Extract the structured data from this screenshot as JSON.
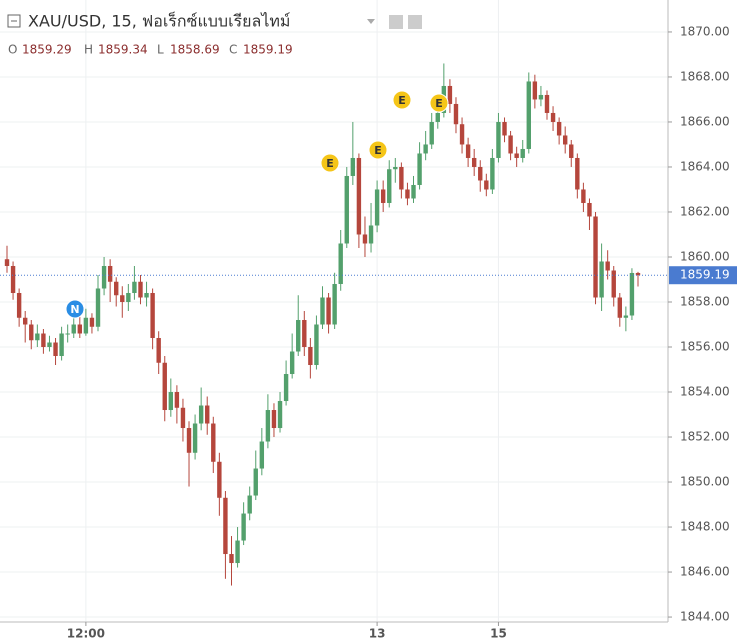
{
  "chart_data": {
    "type": "candlestick",
    "title": "XAU/USD, 15, ฟอเร็กซ์แบบเรียลไทม์",
    "ohlc_labels": [
      "O",
      "H",
      "L",
      "C"
    ],
    "up_color": "#53a06c",
    "down_color": "#b5463c",
    "price_line_color": "#4a7bd0",
    "grid": true,
    "events": [
      "N",
      "E",
      "E",
      "E",
      "E"
    ],
    "categories": [
      null,
      null,
      null,
      null,
      null,
      null,
      null,
      null,
      null,
      null,
      null,
      null,
      null,
      "12:00",
      null,
      null,
      null,
      null,
      null,
      null,
      null,
      null,
      null,
      null,
      null,
      null,
      null,
      null,
      null,
      null,
      null,
      null,
      null,
      null,
      null,
      null,
      null,
      null,
      null,
      null,
      null,
      null,
      null,
      null,
      null,
      null,
      null,
      null,
      null,
      null,
      null,
      null,
      null,
      null,
      null,
      null,
      null,
      null,
      null,
      null,
      null,
      "13",
      null,
      null,
      null,
      null,
      null,
      null,
      null,
      null,
      null,
      null,
      null,
      null,
      null,
      null,
      null,
      null,
      null,
      null,
      null,
      "15",
      null,
      null,
      null,
      null,
      null,
      null,
      null,
      null,
      null,
      null,
      null,
      null,
      null,
      null,
      null,
      null,
      null,
      null,
      null,
      null,
      null,
      null,
      null
    ],
    "open": [
      1859.9,
      1859.6,
      1858.4,
      1857.3,
      1857.0,
      1856.3,
      1856.6,
      1856.0,
      1856.2,
      1855.6,
      1856.6,
      1856.6,
      1857.0,
      1856.6,
      1857.3,
      1856.9,
      1858.6,
      1859.6,
      1858.9,
      1858.3,
      1858.0,
      1858.4,
      1858.9,
      1858.2,
      1858.4,
      1856.4,
      1855.3,
      1853.2,
      1854.0,
      1853.3,
      1852.4,
      1851.3,
      1852.6,
      1853.4,
      1852.6,
      1850.9,
      1849.3,
      1846.8,
      1846.4,
      1847.4,
      1848.6,
      1849.4,
      1850.6,
      1851.8,
      1853.2,
      1852.4,
      1853.6,
      1854.8,
      1855.8,
      1857.2,
      1856.0,
      1855.2,
      1857.0,
      1858.2,
      1857.0,
      1858.8,
      1860.6,
      1863.6,
      1864.4,
      1861.0,
      1860.6,
      1861.4,
      1863.0,
      1862.4,
      1863.9,
      1864.0,
      1863.0,
      1862.6,
      1863.2,
      1864.6,
      1865.0,
      1866.0,
      1866.4,
      1867.6,
      1866.8,
      1865.9,
      1865.0,
      1864.4,
      1864.0,
      1863.4,
      1863.0,
      1864.4,
      1866.0,
      1865.4,
      1864.6,
      1864.4,
      1864.8,
      1867.8,
      1867.0,
      1867.2,
      1866.4,
      1866.0,
      1865.4,
      1865.0,
      1864.4,
      1863.0,
      1862.4,
      1861.8,
      1858.2,
      1859.8,
      1859.4,
      1858.2,
      1857.3,
      1857.4,
      1859.29
    ],
    "high": [
      1860.5,
      1859.8,
      1858.6,
      1857.6,
      1857.2,
      1857.0,
      1856.8,
      1856.5,
      1856.4,
      1856.9,
      1857.0,
      1857.3,
      1857.4,
      1857.7,
      1857.5,
      1859.2,
      1860.0,
      1859.9,
      1859.1,
      1858.7,
      1858.8,
      1859.6,
      1859.2,
      1858.9,
      1858.6,
      1856.7,
      1855.6,
      1854.6,
      1854.3,
      1853.7,
      1852.7,
      1853.0,
      1854.2,
      1853.8,
      1852.9,
      1851.3,
      1849.6,
      1847.6,
      1848.0,
      1849.1,
      1849.8,
      1851.4,
      1852.4,
      1853.9,
      1853.5,
      1854.0,
      1855.4,
      1856.6,
      1858.3,
      1857.6,
      1856.4,
      1857.4,
      1858.7,
      1858.4,
      1859.3,
      1861.2,
      1864.0,
      1866.0,
      1864.6,
      1861.8,
      1862.4,
      1863.4,
      1863.4,
      1864.3,
      1864.4,
      1864.2,
      1863.3,
      1863.6,
      1865.1,
      1865.6,
      1866.4,
      1867.0,
      1868.6,
      1867.9,
      1867.1,
      1866.2,
      1865.3,
      1864.8,
      1864.3,
      1863.7,
      1864.8,
      1866.4,
      1866.2,
      1865.6,
      1864.9,
      1865.2,
      1868.2,
      1868.1,
      1867.6,
      1867.4,
      1866.7,
      1866.2,
      1865.8,
      1865.2,
      1864.6,
      1863.3,
      1862.6,
      1862.0,
      1860.6,
      1860.3,
      1859.6,
      1858.4,
      1857.8,
      1859.5,
      1859.34
    ],
    "low": [
      1859.3,
      1858.1,
      1856.9,
      1856.2,
      1855.9,
      1856.0,
      1855.7,
      1855.8,
      1855.2,
      1855.4,
      1856.2,
      1856.4,
      1856.4,
      1856.5,
      1856.6,
      1856.7,
      1858.3,
      1858.0,
      1857.8,
      1857.3,
      1857.6,
      1858.1,
      1857.9,
      1857.8,
      1855.9,
      1854.8,
      1852.7,
      1852.9,
      1852.6,
      1851.8,
      1849.8,
      1851.0,
      1852.3,
      1852.1,
      1850.4,
      1848.5,
      1845.7,
      1845.4,
      1846.2,
      1847.2,
      1848.3,
      1849.2,
      1850.3,
      1851.5,
      1852.0,
      1852.2,
      1853.4,
      1854.6,
      1855.6,
      1855.6,
      1854.6,
      1855.0,
      1856.8,
      1856.6,
      1856.8,
      1858.5,
      1860.4,
      1863.2,
      1860.4,
      1860.0,
      1860.2,
      1861.1,
      1862.0,
      1862.2,
      1863.3,
      1862.6,
      1862.3,
      1862.4,
      1863.0,
      1864.3,
      1864.8,
      1865.7,
      1866.2,
      1866.4,
      1865.5,
      1864.6,
      1864.0,
      1863.6,
      1862.9,
      1862.7,
      1862.8,
      1864.2,
      1865.1,
      1864.3,
      1864.0,
      1864.2,
      1864.6,
      1866.6,
      1866.7,
      1866.1,
      1865.6,
      1865.0,
      1864.6,
      1864.0,
      1862.6,
      1862.0,
      1861.2,
      1857.9,
      1857.6,
      1859.0,
      1857.8,
      1856.9,
      1856.7,
      1857.2,
      1858.69
    ],
    "close": [
      1859.6,
      1858.4,
      1857.3,
      1857.0,
      1856.3,
      1856.6,
      1856.0,
      1856.2,
      1855.6,
      1856.6,
      1856.6,
      1857.0,
      1856.6,
      1857.3,
      1856.9,
      1858.6,
      1859.6,
      1858.9,
      1858.3,
      1858.0,
      1858.4,
      1858.9,
      1858.2,
      1858.4,
      1856.4,
      1855.3,
      1853.2,
      1854.0,
      1853.3,
      1852.4,
      1851.3,
      1852.6,
      1853.4,
      1852.6,
      1850.9,
      1849.3,
      1846.8,
      1846.4,
      1847.4,
      1848.6,
      1849.4,
      1850.6,
      1851.8,
      1853.2,
      1852.4,
      1853.6,
      1854.8,
      1855.8,
      1857.2,
      1856.0,
      1855.2,
      1857.0,
      1858.2,
      1857.0,
      1858.8,
      1860.6,
      1863.6,
      1864.4,
      1861.0,
      1860.6,
      1861.4,
      1863.0,
      1862.4,
      1863.9,
      1864.0,
      1863.0,
      1862.6,
      1863.2,
      1864.6,
      1865.0,
      1866.0,
      1866.4,
      1867.6,
      1866.8,
      1865.9,
      1865.0,
      1864.4,
      1864.0,
      1863.4,
      1863.0,
      1864.4,
      1866.0,
      1865.4,
      1864.6,
      1864.4,
      1864.8,
      1867.8,
      1867.0,
      1867.2,
      1866.4,
      1866.0,
      1865.4,
      1865.0,
      1864.4,
      1863.0,
      1862.4,
      1861.8,
      1858.2,
      1859.8,
      1859.4,
      1858.2,
      1857.3,
      1857.4,
      1859.29,
      1859.19
    ],
    "ylim": [
      1843.78,
      1871.42
    ],
    "yticks": [
      {
        "value": 1844,
        "label": "1844.00"
      },
      {
        "value": 1846,
        "label": "1846.00"
      },
      {
        "value": 1848,
        "label": "1848.00"
      },
      {
        "value": 1850,
        "label": "1850.00"
      },
      {
        "value": 1852,
        "label": "1852.00"
      },
      {
        "value": 1854,
        "label": "1854.00"
      },
      {
        "value": 1856,
        "label": "1856.00"
      },
      {
        "value": 1858,
        "label": "1858.00"
      },
      {
        "value": 1860,
        "label": "1860.00"
      },
      {
        "value": 1862,
        "label": "1862.00"
      },
      {
        "value": 1864,
        "label": "1864.00"
      },
      {
        "value": 1866,
        "label": "1866.00"
      },
      {
        "value": 1868,
        "label": "1868.00"
      },
      {
        "value": 1870,
        "label": "1870.00"
      }
    ]
  }
}
